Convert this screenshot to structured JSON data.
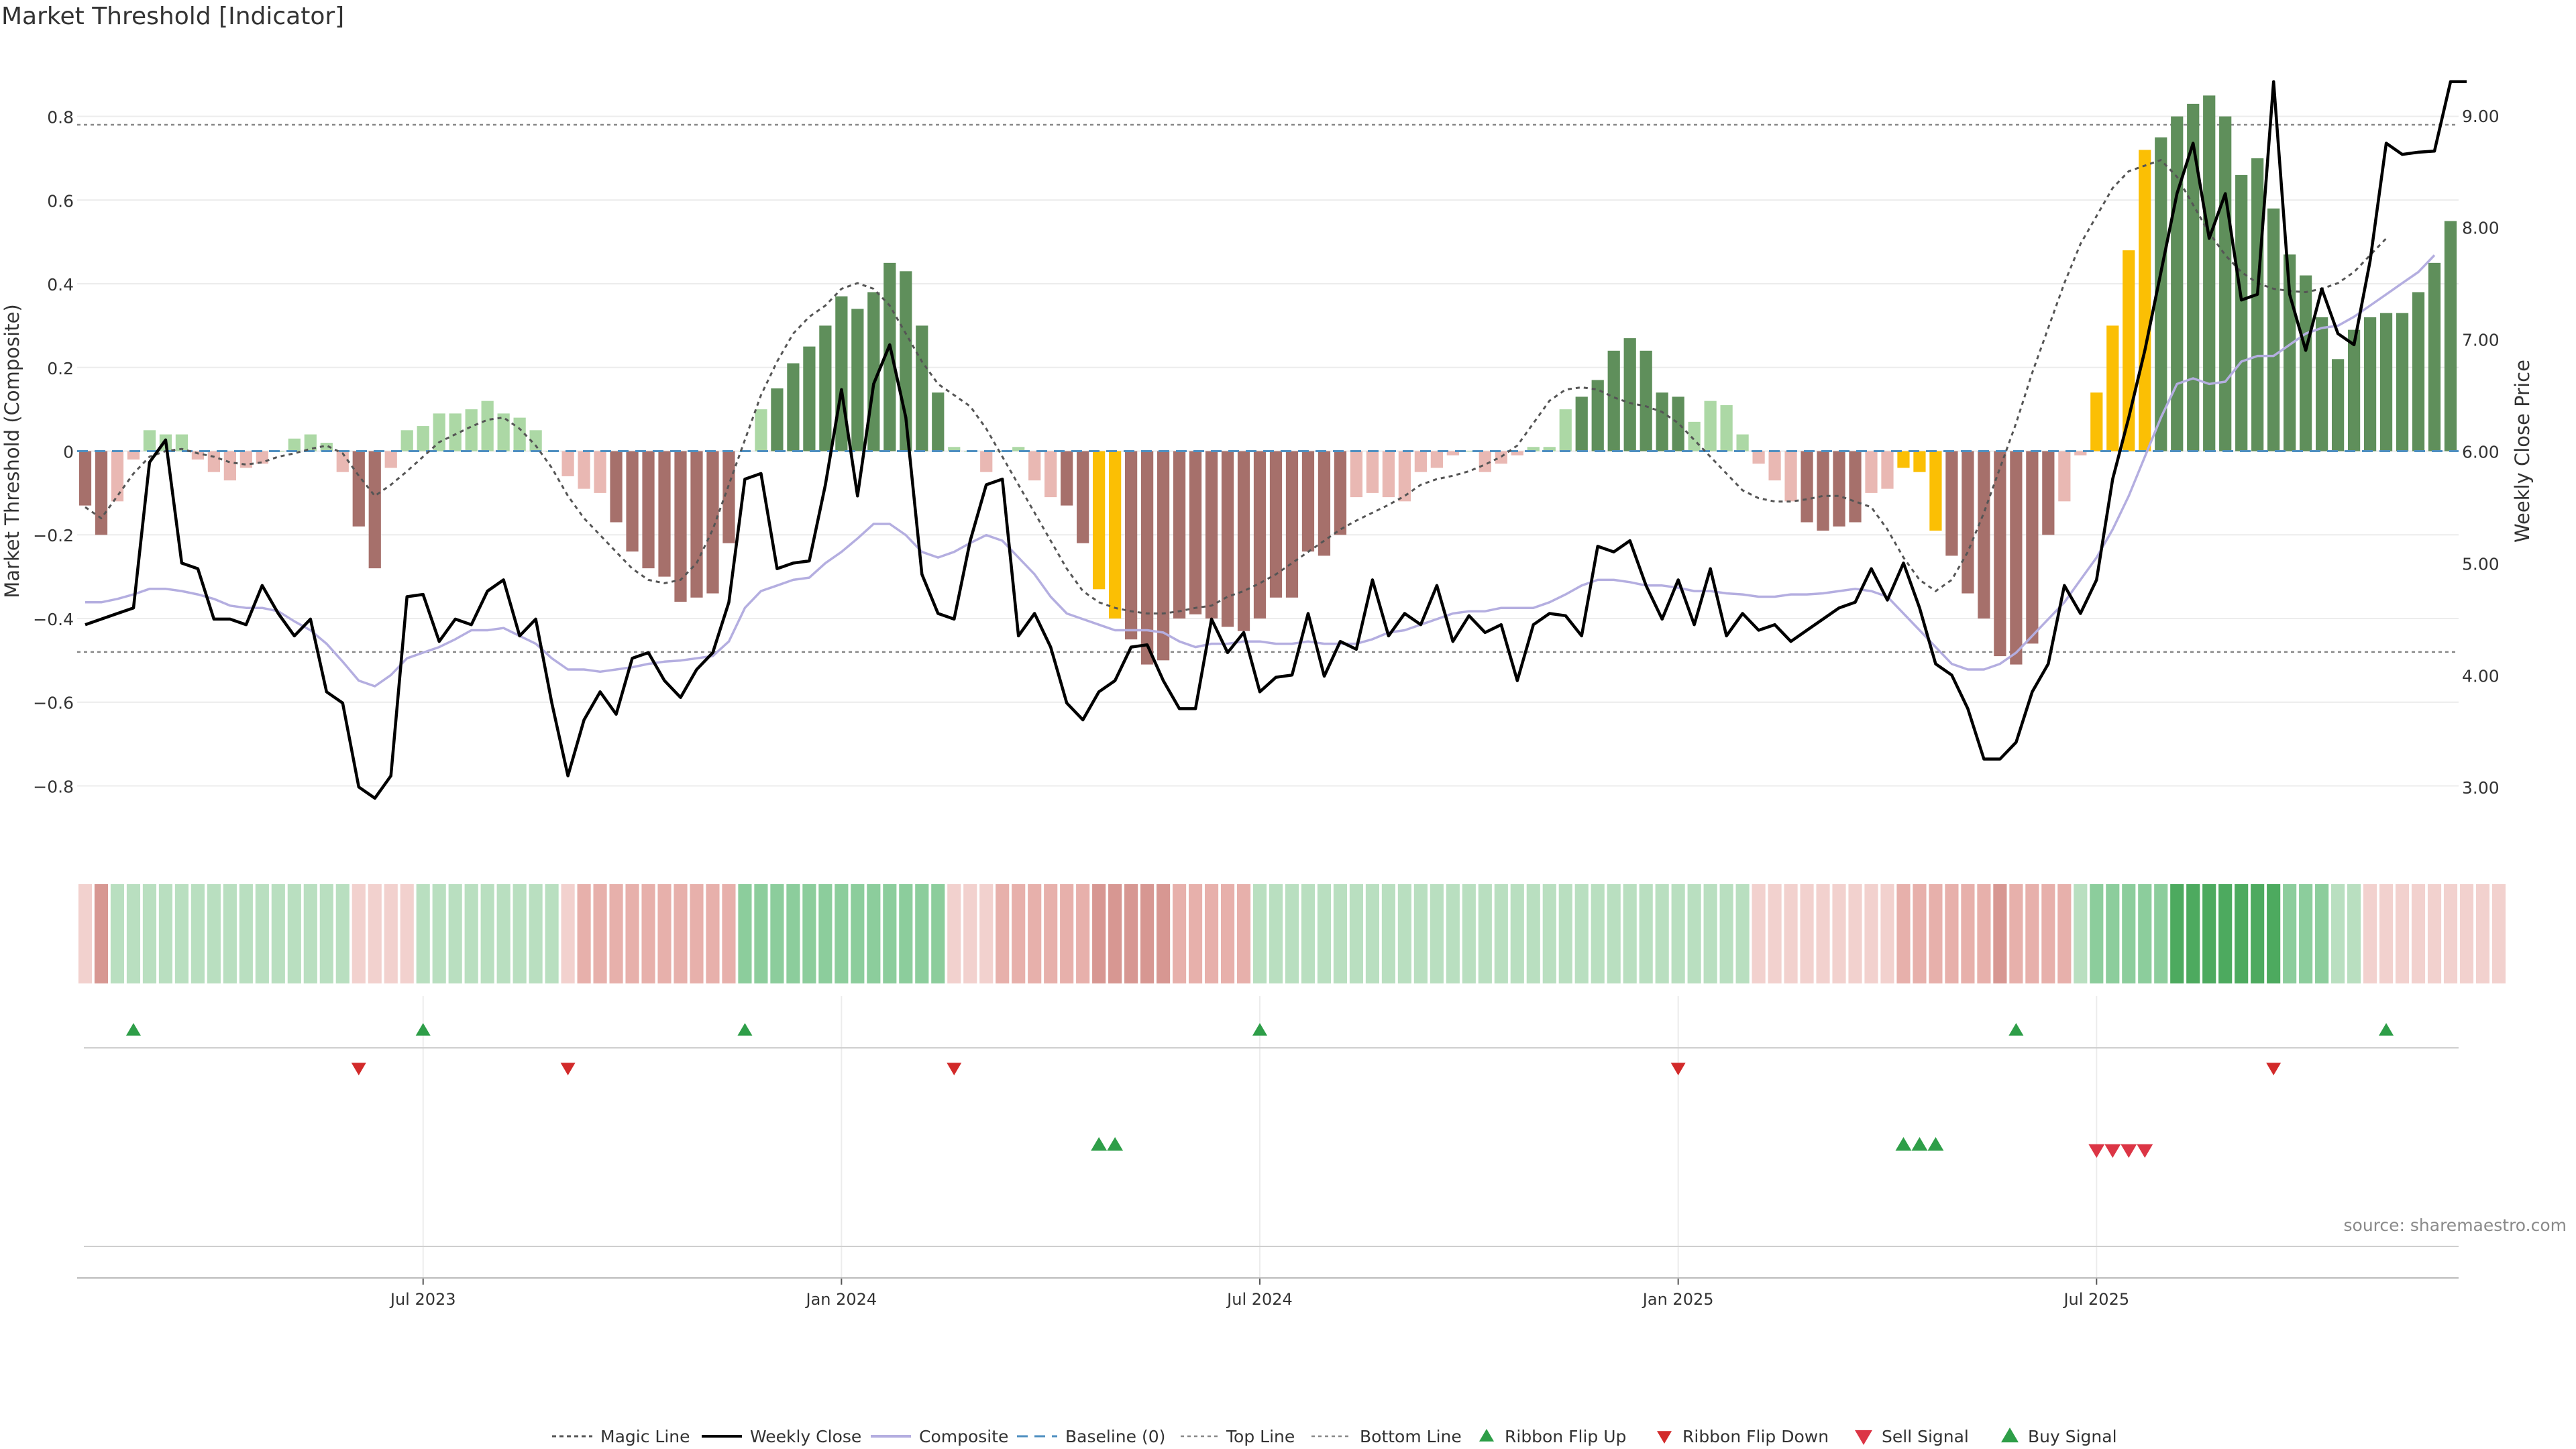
{
  "page": {
    "title": "Market Threshold [Indicator]",
    "source": "source: sharemaestro.com"
  },
  "colors": {
    "pos_dark": "#5f8f5b",
    "pos_light": "#acd8a5",
    "neg_dark": "#a6706b",
    "neg_light": "#e9b8b3",
    "extreme": "#fbbf04",
    "weekly_close": "#000000",
    "composite": "#b4aee0",
    "magic_line": "#555555",
    "baseline": "#4e8fc0",
    "threshold_line": "#888888",
    "ribbon_flip_up": "#2e9e48",
    "ribbon_flip_down": "#d22a2a",
    "sell_signal": "#dc3545",
    "buy_signal": "#2e9e48"
  },
  "chart_data": {
    "type": "bar",
    "title": "Market Threshold [Indicator]",
    "ylabel": "Market Threshold (Composite)",
    "y2label": "Weekly Close Price",
    "ylim": [
      -0.95,
      0.95
    ],
    "y2lim": [
      2.45,
      9.55
    ],
    "yticks": [
      "0.8",
      "0.6",
      "0.4",
      "0.2",
      "0",
      "−0.2",
      "−0.4",
      "−0.6",
      "−0.8"
    ],
    "y2ticks": [
      "9.00",
      "8.00",
      "7.00",
      "6.00",
      "5.00",
      "4.00",
      "3.00"
    ],
    "xticks": [
      {
        "label": "Jul 2023",
        "week": 21
      },
      {
        "label": "Jan 2024",
        "week": 47
      },
      {
        "label": "Jul 2024",
        "week": 73
      },
      {
        "label": "Jan 2025",
        "week": 99
      },
      {
        "label": "Jul 2025",
        "week": 125
      }
    ],
    "top_line": 0.78,
    "bottom_line": -0.48,
    "baseline": 0,
    "composite_bars": [
      -0.13,
      -0.2,
      -0.12,
      -0.02,
      0.05,
      0.04,
      0.04,
      -0.02,
      -0.05,
      -0.07,
      -0.04,
      -0.03,
      0.0,
      0.03,
      0.04,
      0.02,
      -0.05,
      -0.18,
      -0.28,
      -0.04,
      0.05,
      0.06,
      0.09,
      0.09,
      0.1,
      0.12,
      0.09,
      0.08,
      0.05,
      0.0,
      -0.06,
      -0.09,
      -0.1,
      -0.17,
      -0.24,
      -0.28,
      -0.3,
      -0.36,
      -0.35,
      -0.34,
      -0.22,
      0.0,
      0.1,
      0.15,
      0.21,
      0.25,
      0.3,
      0.37,
      0.34,
      0.38,
      0.45,
      0.43,
      0.3,
      0.14,
      0.01,
      0.0,
      -0.05,
      0.0,
      0.01,
      -0.07,
      -0.11,
      -0.13,
      -0.22,
      -0.33,
      -0.4,
      -0.45,
      -0.51,
      -0.5,
      -0.4,
      -0.39,
      -0.4,
      -0.42,
      -0.43,
      -0.4,
      -0.35,
      -0.35,
      -0.24,
      -0.25,
      -0.2,
      -0.11,
      -0.1,
      -0.11,
      -0.12,
      -0.05,
      -0.04,
      -0.01,
      0.0,
      -0.05,
      -0.03,
      -0.01,
      0.01,
      0.01,
      0.1,
      0.13,
      0.17,
      0.24,
      0.27,
      0.24,
      0.14,
      0.13,
      0.07,
      0.12,
      0.11,
      0.04,
      -0.03,
      -0.07,
      -0.12,
      -0.17,
      -0.19,
      -0.18,
      -0.17,
      -0.1,
      -0.09,
      -0.04,
      -0.05,
      -0.19,
      -0.25,
      -0.34,
      -0.4,
      -0.49,
      -0.51,
      -0.46,
      -0.2,
      -0.12,
      -0.01,
      0.14,
      0.3,
      0.48,
      0.72,
      0.75,
      0.8,
      0.83,
      0.85,
      0.8,
      0.66,
      0.7,
      0.58,
      0.47,
      0.42,
      0.32,
      0.22,
      0.29,
      0.32,
      0.33,
      0.33,
      0.38,
      0.45,
      0.55
    ],
    "extreme_weeks": [
      63,
      64,
      113,
      114,
      115,
      125,
      126,
      127,
      128
    ],
    "weekly_close": [
      4.45,
      4.5,
      4.55,
      4.6,
      5.9,
      6.1,
      5.0,
      4.95,
      4.5,
      4.5,
      4.45,
      4.8,
      4.55,
      4.35,
      4.5,
      3.85,
      3.75,
      3.0,
      2.9,
      3.1,
      4.7,
      4.72,
      4.3,
      4.5,
      4.45,
      4.75,
      4.85,
      4.35,
      4.5,
      3.75,
      3.1,
      3.6,
      3.85,
      3.65,
      4.15,
      4.2,
      3.95,
      3.8,
      4.05,
      4.2,
      4.65,
      5.75,
      5.8,
      4.95,
      5.0,
      5.02,
      5.7,
      6.55,
      5.6,
      6.6,
      6.95,
      6.3,
      4.9,
      4.55,
      4.5,
      5.2,
      5.7,
      5.75,
      4.35,
      4.55,
      4.25,
      3.75,
      3.6,
      3.85,
      3.95,
      4.25,
      4.27,
      3.95,
      3.7,
      3.7,
      4.5,
      4.2,
      4.38,
      3.85,
      3.98,
      4.0,
      4.55,
      3.99,
      4.3,
      4.23,
      4.85,
      4.35,
      4.55,
      4.45,
      4.8,
      4.3,
      4.53,
      4.38,
      4.45,
      3.95,
      4.45,
      4.55,
      4.53,
      4.35,
      5.15,
      5.1,
      5.2,
      4.8,
      4.5,
      4.85,
      4.45,
      4.95,
      4.35,
      4.55,
      4.4,
      4.45,
      4.3,
      4.4,
      4.5,
      4.6,
      4.65,
      4.95,
      4.67,
      5.0,
      4.6,
      4.1,
      4.0,
      3.7,
      3.25,
      3.25,
      3.4,
      3.85,
      4.1,
      4.8,
      4.55,
      4.85,
      5.75,
      6.3,
      6.9,
      7.6,
      8.3,
      8.75,
      7.9,
      8.3,
      7.35,
      7.4,
      9.3,
      7.4,
      6.9,
      7.45,
      7.05,
      6.95,
      7.7,
      8.75,
      8.65,
      8.67,
      8.68,
      9.3,
      9.3
    ],
    "composite_line": [
      4.65,
      4.65,
      4.68,
      4.72,
      4.77,
      4.77,
      4.75,
      4.72,
      4.68,
      4.62,
      4.6,
      4.6,
      4.57,
      4.48,
      4.4,
      4.28,
      4.12,
      3.95,
      3.9,
      4.0,
      4.15,
      4.2,
      4.25,
      4.32,
      4.4,
      4.4,
      4.42,
      4.35,
      4.28,
      4.15,
      4.05,
      4.05,
      4.03,
      4.05,
      4.07,
      4.1,
      4.12,
      4.13,
      4.15,
      4.17,
      4.3,
      4.6,
      4.75,
      4.8,
      4.85,
      4.87,
      5.0,
      5.1,
      5.22,
      5.35,
      5.35,
      5.25,
      5.1,
      5.05,
      5.1,
      5.18,
      5.25,
      5.2,
      5.05,
      4.9,
      4.7,
      4.55,
      4.5,
      4.45,
      4.4,
      4.4,
      4.4,
      4.38,
      4.3,
      4.25,
      4.28,
      4.28,
      4.3,
      4.3,
      4.28,
      4.28,
      4.3,
      4.28,
      4.28,
      4.28,
      4.32,
      4.38,
      4.4,
      4.45,
      4.5,
      4.55,
      4.57,
      4.57,
      4.6,
      4.6,
      4.6,
      4.65,
      4.72,
      4.8,
      4.85,
      4.85,
      4.83,
      4.8,
      4.8,
      4.78,
      4.75,
      4.75,
      4.73,
      4.72,
      4.7,
      4.7,
      4.72,
      4.72,
      4.73,
      4.75,
      4.77,
      4.75,
      4.7,
      4.55,
      4.4,
      4.25,
      4.1,
      4.05,
      4.05,
      4.1,
      4.2,
      4.35,
      4.5,
      4.65,
      4.85,
      5.05,
      5.3,
      5.6,
      5.95,
      6.3,
      6.6,
      6.65,
      6.6,
      6.62,
      6.8,
      6.85,
      6.85,
      6.95,
      7.05,
      7.1,
      7.12,
      7.2,
      7.3,
      7.4,
      7.5,
      7.6,
      7.75
    ],
    "magic_line": [
      5.5,
      5.4,
      5.6,
      5.8,
      5.95,
      6.0,
      6.02,
      5.98,
      5.95,
      5.9,
      5.88,
      5.9,
      5.95,
      5.98,
      6.02,
      6.05,
      5.98,
      5.78,
      5.6,
      5.7,
      5.82,
      5.95,
      6.08,
      6.15,
      6.22,
      6.28,
      6.3,
      6.2,
      6.05,
      5.85,
      5.6,
      5.4,
      5.25,
      5.1,
      4.95,
      4.85,
      4.82,
      4.85,
      5.0,
      5.3,
      5.7,
      6.1,
      6.5,
      6.8,
      7.05,
      7.2,
      7.3,
      7.45,
      7.5,
      7.45,
      7.3,
      7.05,
      6.8,
      6.6,
      6.5,
      6.4,
      6.2,
      5.95,
      5.7,
      5.45,
      5.2,
      4.95,
      4.75,
      4.65,
      4.6,
      4.57,
      4.55,
      4.55,
      4.57,
      4.6,
      4.62,
      4.7,
      4.75,
      4.82,
      4.9,
      5.0,
      5.1,
      5.2,
      5.3,
      5.38,
      5.45,
      5.52,
      5.6,
      5.7,
      5.75,
      5.78,
      5.82,
      5.88,
      5.95,
      6.05,
      6.25,
      6.45,
      6.55,
      6.57,
      6.55,
      6.48,
      6.43,
      6.4,
      6.35,
      6.25,
      6.1,
      5.95,
      5.8,
      5.65,
      5.58,
      5.55,
      5.55,
      5.57,
      5.6,
      5.6,
      5.55,
      5.5,
      5.3,
      5.05,
      4.85,
      4.75,
      4.85,
      5.1,
      5.45,
      5.85,
      6.25,
      6.7,
      7.1,
      7.5,
      7.85,
      8.1,
      8.35,
      8.5,
      8.55,
      8.6,
      8.45,
      8.2,
      7.95,
      7.75,
      7.6,
      7.5,
      7.45,
      7.43,
      7.42,
      7.45,
      7.5,
      7.6,
      7.75,
      7.9
    ],
    "ribbon_intensity": [
      -1,
      -3,
      1,
      1,
      1,
      1,
      1,
      1,
      1,
      1,
      1,
      1,
      1,
      1,
      1,
      1,
      1,
      -1,
      -1,
      -1,
      -1,
      1,
      1,
      1,
      1,
      1,
      1,
      1,
      1,
      1,
      -1,
      -2,
      -2,
      -2,
      -2,
      -2,
      -2,
      -2,
      -2,
      -2,
      -2,
      2,
      2,
      2,
      2,
      2,
      2,
      2,
      2,
      2,
      2,
      2,
      2,
      2,
      -1,
      -1,
      -1,
      -2,
      -2,
      -2,
      -2,
      -2,
      -2,
      -3,
      -3,
      -3,
      -3,
      -3,
      -2,
      -2,
      -2,
      -2,
      -2,
      1,
      1,
      1,
      1,
      1,
      1,
      1,
      1,
      1,
      1,
      1,
      1,
      1,
      1,
      1,
      1,
      1,
      1,
      1,
      1,
      1,
      1,
      1,
      1,
      1,
      1,
      1,
      1,
      1,
      1,
      1,
      -1,
      -1,
      -1,
      -1,
      -1,
      -1,
      -1,
      -1,
      -1,
      -2,
      -2,
      -2,
      -2,
      -2,
      -2,
      -3,
      -2,
      -2,
      -2,
      -2,
      1,
      2,
      2,
      2,
      2,
      2,
      3,
      3,
      3,
      3,
      3,
      3,
      3,
      2,
      2,
      2,
      1,
      1,
      -1,
      -1,
      -1,
      -1,
      -1,
      -1,
      -1,
      -1,
      -1
    ],
    "ribbon_flip_up_weeks": [
      3,
      21,
      41,
      73,
      120,
      143
    ],
    "ribbon_flip_down_weeks": [
      17,
      30,
      54,
      99,
      136
    ],
    "buy_signal_weeks": [
      63,
      64,
      113,
      114,
      115
    ],
    "sell_signal_weeks": [
      125,
      126,
      127,
      128
    ]
  },
  "legend": [
    {
      "key": "magic",
      "label": "Magic Line"
    },
    {
      "key": "close",
      "label": "Weekly Close"
    },
    {
      "key": "comp",
      "label": "Composite"
    },
    {
      "key": "base",
      "label": "Baseline (0)"
    },
    {
      "key": "top",
      "label": "Top Line"
    },
    {
      "key": "bottom",
      "label": "Bottom Line"
    },
    {
      "key": "flipup",
      "label": "Ribbon Flip Up"
    },
    {
      "key": "flipdown",
      "label": "Ribbon Flip Down"
    },
    {
      "key": "sell",
      "label": "Sell Signal"
    },
    {
      "key": "buy",
      "label": "Buy Signal"
    }
  ]
}
